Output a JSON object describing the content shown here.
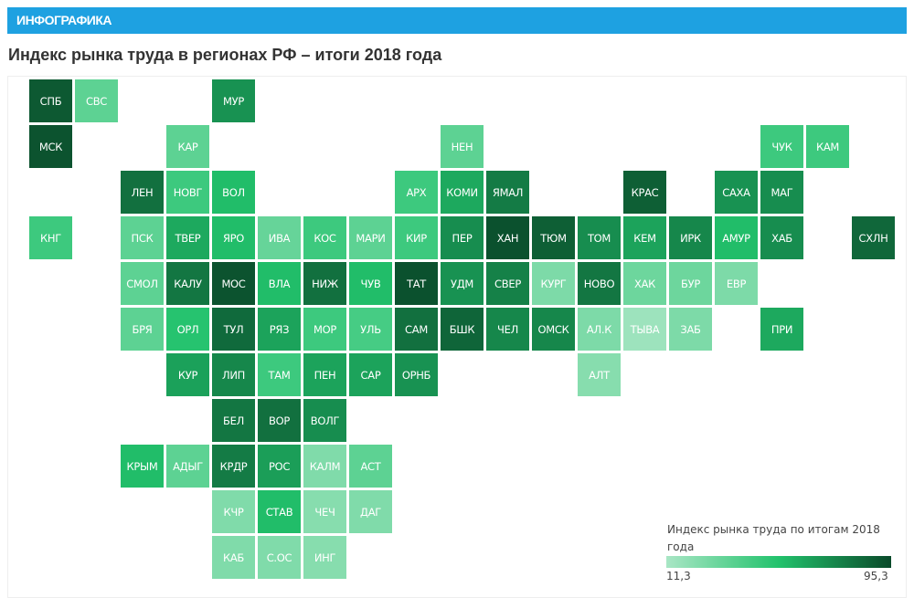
{
  "banner": {
    "label": "ИНФОГРАФИКА",
    "color": "#1ea1e1"
  },
  "title": "Индекс рынка труда в регионах РФ – итоги 2018 года",
  "chart_data": {
    "type": "heatmap",
    "title": "Индекс рынка труда в регионах РФ – итоги 2018 года",
    "color_scale": {
      "min": 11.3,
      "max": 95.3,
      "colors": [
        "#a9e6c5",
        "#22c26c",
        "#0a4a2a"
      ]
    },
    "legend": {
      "title": "Индекс рынка труда по итогам 2018 года",
      "min_label": "11,3",
      "max_label": "95,3",
      "placement": "bottom-right"
    },
    "regions": [
      {
        "label": "СПБ",
        "value": 90
      },
      {
        "label": "СВС",
        "value": 35
      },
      {
        "label": "МУР",
        "value": 70
      },
      {
        "label": "МСК",
        "value": 92
      },
      {
        "label": "КАР",
        "value": 35
      },
      {
        "label": "НЕН",
        "value": 35
      },
      {
        "label": "ЧУК",
        "value": 45
      },
      {
        "label": "КАМ",
        "value": 45
      },
      {
        "label": "ЛЕН",
        "value": 82
      },
      {
        "label": "НОВГ",
        "value": 45
      },
      {
        "label": "ВОЛ",
        "value": 55
      },
      {
        "label": "АРХ",
        "value": 45
      },
      {
        "label": "КОМИ",
        "value": 62
      },
      {
        "label": "ЯМАЛ",
        "value": 78
      },
      {
        "label": "КРАС",
        "value": 88
      },
      {
        "label": "САХА",
        "value": 70
      },
      {
        "label": "МАГ",
        "value": 72
      },
      {
        "label": "КНГ",
        "value": 45
      },
      {
        "label": "ПСК",
        "value": 35
      },
      {
        "label": "ТВЕР",
        "value": 62
      },
      {
        "label": "ЯРО",
        "value": 55
      },
      {
        "label": "ИВА",
        "value": 32
      },
      {
        "label": "КОС",
        "value": 45
      },
      {
        "label": "МАРИ",
        "value": 35
      },
      {
        "label": "КИР",
        "value": 45
      },
      {
        "label": "ПЕР",
        "value": 72
      },
      {
        "label": "ХАН",
        "value": 93
      },
      {
        "label": "ТЮМ",
        "value": 88
      },
      {
        "label": "ТОМ",
        "value": 72
      },
      {
        "label": "КЕМ",
        "value": 64
      },
      {
        "label": "ИРК",
        "value": 74
      },
      {
        "label": "АМУР",
        "value": 55
      },
      {
        "label": "ХАБ",
        "value": 72
      },
      {
        "label": "СХЛН",
        "value": 85
      },
      {
        "label": "СМОЛ",
        "value": 35
      },
      {
        "label": "КАЛУ",
        "value": 80
      },
      {
        "label": "МОС",
        "value": 92
      },
      {
        "label": "ВЛА",
        "value": 55
      },
      {
        "label": "НИЖ",
        "value": 82
      },
      {
        "label": "ЧУВ",
        "value": 55
      },
      {
        "label": "ТАТ",
        "value": 93
      },
      {
        "label": "УДМ",
        "value": 70
      },
      {
        "label": "СВЕР",
        "value": 76
      },
      {
        "label": "КУРГ",
        "value": 25
      },
      {
        "label": "НОВО",
        "value": 80
      },
      {
        "label": "ХАК",
        "value": 30
      },
      {
        "label": "БУР",
        "value": 30
      },
      {
        "label": "ЕВР",
        "value": 25
      },
      {
        "label": "БРЯ",
        "value": 35
      },
      {
        "label": "ОРЛ",
        "value": 52
      },
      {
        "label": "ТУЛ",
        "value": 84
      },
      {
        "label": "РЯЗ",
        "value": 64
      },
      {
        "label": "МОР",
        "value": 45
      },
      {
        "label": "УЛЬ",
        "value": 42
      },
      {
        "label": "САМ",
        "value": 82
      },
      {
        "label": "БШК",
        "value": 86
      },
      {
        "label": "ЧЕЛ",
        "value": 74
      },
      {
        "label": "ОМСК",
        "value": 74
      },
      {
        "label": "АЛ.К",
        "value": 25
      },
      {
        "label": "ТЫВА",
        "value": 15
      },
      {
        "label": "ЗАБ",
        "value": 25
      },
      {
        "label": "ПРИ",
        "value": 62
      },
      {
        "label": "КУР",
        "value": 65
      },
      {
        "label": "ЛИП",
        "value": 74
      },
      {
        "label": "ТАМ",
        "value": 45
      },
      {
        "label": "ПЕН",
        "value": 64
      },
      {
        "label": "САР",
        "value": 64
      },
      {
        "label": "ОРНБ",
        "value": 70
      },
      {
        "label": "АЛТ",
        "value": 22
      },
      {
        "label": "БЕЛ",
        "value": 80
      },
      {
        "label": "ВОР",
        "value": 82
      },
      {
        "label": "ВОЛГ",
        "value": 72
      },
      {
        "label": "КРЫМ",
        "value": 55
      },
      {
        "label": "АДЫГ",
        "value": 35
      },
      {
        "label": "КРДР",
        "value": 78
      },
      {
        "label": "РОС",
        "value": 66
      },
      {
        "label": "КАЛМ",
        "value": 24
      },
      {
        "label": "АСТ",
        "value": 35
      },
      {
        "label": "КЧР",
        "value": 24
      },
      {
        "label": "СТАВ",
        "value": 55
      },
      {
        "label": "ЧЕЧ",
        "value": 22
      },
      {
        "label": "ДАГ",
        "value": 24
      },
      {
        "label": "КАБ",
        "value": 24
      },
      {
        "label": "С.ОС",
        "value": 24
      },
      {
        "label": "ИНГ",
        "value": 22
      }
    ]
  }
}
